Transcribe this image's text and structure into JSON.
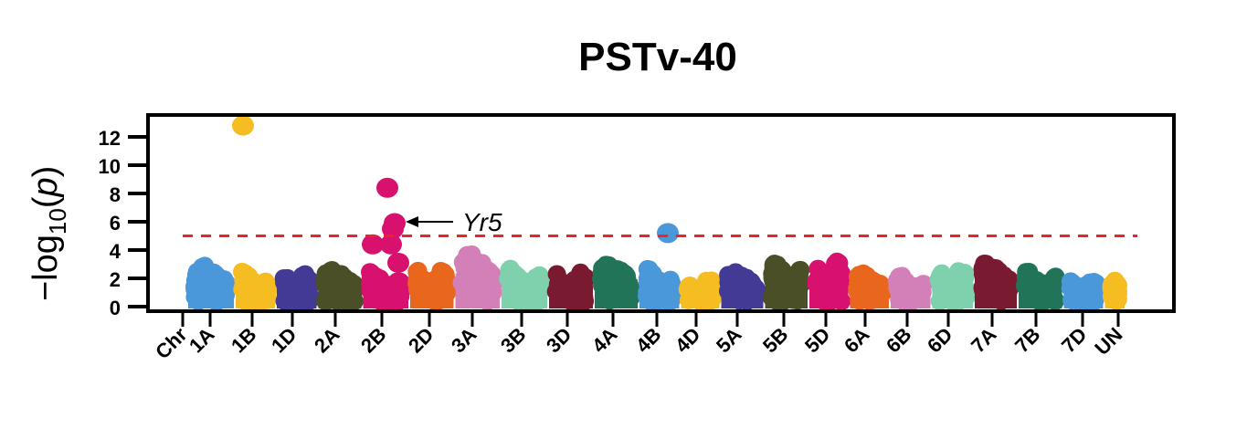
{
  "chart_data": {
    "type": "scatter",
    "subtype": "manhattan",
    "title": "PSTv-40",
    "ylabel": "-log10(p)",
    "ylabel_parts": {
      "prefix": "−log",
      "sub": "10",
      "open": "(",
      "var": "p",
      "close": ")"
    },
    "xlabel_first_tick": "Chr",
    "ylim": [
      0,
      13
    ],
    "yticks": [
      0,
      2,
      4,
      6,
      8,
      10,
      12
    ],
    "threshold": {
      "value": 5,
      "color": "#e8262a",
      "style": "dashed"
    },
    "grid": false,
    "legend": "none",
    "chromosomes": [
      {
        "name": "1A",
        "color": "#4a98d9",
        "background_max": 2.9
      },
      {
        "name": "1B",
        "color": "#f5bd22",
        "background_max": 2.7
      },
      {
        "name": "1D",
        "color": "#433a96",
        "background_max": 2.6
      },
      {
        "name": "2A",
        "color": "#4a4f27",
        "background_max": 2.7
      },
      {
        "name": "2B",
        "color": "#d8106e",
        "background_max": 2.6
      },
      {
        "name": "2D",
        "color": "#e8671c",
        "background_max": 2.7
      },
      {
        "name": "3A",
        "color": "#d37fb8",
        "background_max": 3.9
      },
      {
        "name": "3B",
        "color": "#7fd0ad",
        "background_max": 3.0
      },
      {
        "name": "3D",
        "color": "#7a1a31",
        "background_max": 2.5
      },
      {
        "name": "4A",
        "color": "#217458",
        "background_max": 3.2
      },
      {
        "name": "4B",
        "color": "#4a98d9",
        "background_max": 2.9
      },
      {
        "name": "4D",
        "color": "#f5bd22",
        "background_max": 2.0
      },
      {
        "name": "5A",
        "color": "#433a96",
        "background_max": 2.5
      },
      {
        "name": "5B",
        "color": "#4a4f27",
        "background_max": 3.5
      },
      {
        "name": "5D",
        "color": "#d8106e",
        "background_max": 3.3
      },
      {
        "name": "6A",
        "color": "#e8671c",
        "background_max": 2.4
      },
      {
        "name": "6B",
        "color": "#d37fb8",
        "background_max": 2.4
      },
      {
        "name": "6D",
        "color": "#7fd0ad",
        "background_max": 2.8
      },
      {
        "name": "7A",
        "color": "#7a1a31",
        "background_max": 3.2
      },
      {
        "name": "7B",
        "color": "#217458",
        "background_max": 2.7
      },
      {
        "name": "7D",
        "color": "#4a98d9",
        "background_max": 2.1
      },
      {
        "name": "UN",
        "color": "#f5bd22",
        "background_max": 2.1
      }
    ],
    "highlighted_points": [
      {
        "chr": "1B",
        "y": 12.8
      },
      {
        "chr": "2B",
        "y": 8.4
      },
      {
        "chr": "2B",
        "y": 5.9
      },
      {
        "chr": "2B",
        "y": 5.5
      },
      {
        "chr": "2B",
        "y": 4.4
      },
      {
        "chr": "2B",
        "y": 4.4
      },
      {
        "chr": "2B",
        "y": 3.1
      },
      {
        "chr": "4B",
        "y": 5.2
      }
    ],
    "annotations": [
      {
        "text": "Yr5",
        "chr": "2B",
        "y": 6.0,
        "arrow": true
      }
    ]
  }
}
